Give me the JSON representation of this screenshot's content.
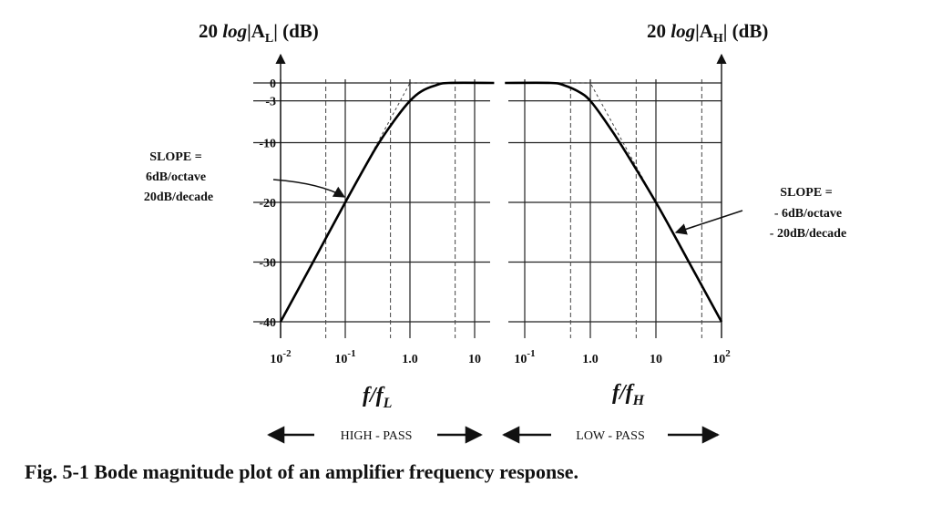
{
  "chart_data": [
    {
      "type": "line",
      "panel": "high-pass",
      "ylabel_prefix": "20 ",
      "ylabel_log": "log",
      "ylabel_abs": "|A",
      "ylabel_sub": "L",
      "ylabel_suffix": "| (dB)",
      "xlabel_f": "f/f",
      "xlabel_sub": "L",
      "x_scale": "log",
      "xlim": [
        0.01,
        20
      ],
      "ylim": [
        -40,
        0
      ],
      "x_ticks": [
        {
          "value": 0.01,
          "base": "10",
          "exp": "-2"
        },
        {
          "value": 0.1,
          "base": "10",
          "exp": "-1"
        },
        {
          "value": 1,
          "base": "1.0",
          "exp": ""
        },
        {
          "value": 10,
          "base": "10",
          "exp": ""
        }
      ],
      "y_ticks": [
        0,
        -3,
        -10,
        -20,
        -30,
        -40
      ],
      "y_tick_labels": [
        "0",
        "-3",
        "-10",
        "-20",
        "-30",
        "-40"
      ],
      "series": [
        {
          "x": [
            0.01,
            0.03,
            0.1,
            0.3,
            0.6,
            1.0,
            1.5,
            2.5,
            4,
            20
          ],
          "y": [
            -40,
            -30.5,
            -20,
            -10.8,
            -6,
            -3,
            -1.4,
            -0.4,
            0,
            0
          ]
        }
      ],
      "asymptote": {
        "x": [
          0.01,
          1,
          20
        ],
        "y": [
          -40,
          0,
          0
        ]
      },
      "annotation": {
        "lines": [
          "SLOPE =",
          "6dB/octave",
          "20dB/decade"
        ],
        "points_to": [
          0.1,
          -20
        ]
      },
      "grid": true
    },
    {
      "type": "line",
      "panel": "low-pass",
      "ylabel_prefix": "20 ",
      "ylabel_log": "log",
      "ylabel_abs": "|A",
      "ylabel_sub": "H",
      "ylabel_suffix": "| (dB)",
      "xlabel_f": "f/f",
      "xlabel_sub": "H",
      "x_scale": "log",
      "xlim": [
        0.05,
        100
      ],
      "ylim": [
        -40,
        0
      ],
      "x_ticks": [
        {
          "value": 0.1,
          "base": "10",
          "exp": "-1"
        },
        {
          "value": 1,
          "base": "1.0",
          "exp": ""
        },
        {
          "value": 10,
          "base": "10",
          "exp": ""
        },
        {
          "value": 100,
          "base": "10",
          "exp": "2"
        }
      ],
      "series": [
        {
          "x": [
            0.05,
            0.25,
            0.4,
            0.7,
            1.0,
            1.6,
            3,
            10,
            30,
            100
          ],
          "y": [
            0,
            0,
            -0.4,
            -1.6,
            -3,
            -6,
            -10.5,
            -20,
            -29.5,
            -40
          ]
        }
      ],
      "asymptote": {
        "x": [
          0.05,
          1,
          100
        ],
        "y": [
          0,
          0,
          -40
        ]
      },
      "annotation": {
        "lines": [
          "SLOPE =",
          "- 6dB/octave",
          "- 20dB/decade"
        ],
        "points_to": [
          5,
          -17
        ]
      },
      "grid": true
    }
  ],
  "bands": {
    "high_pass": "HIGH - PASS",
    "low_pass": "LOW - PASS"
  },
  "caption": "Fig. 5-1 Bode magnitude plot of an amplifier frequency response."
}
